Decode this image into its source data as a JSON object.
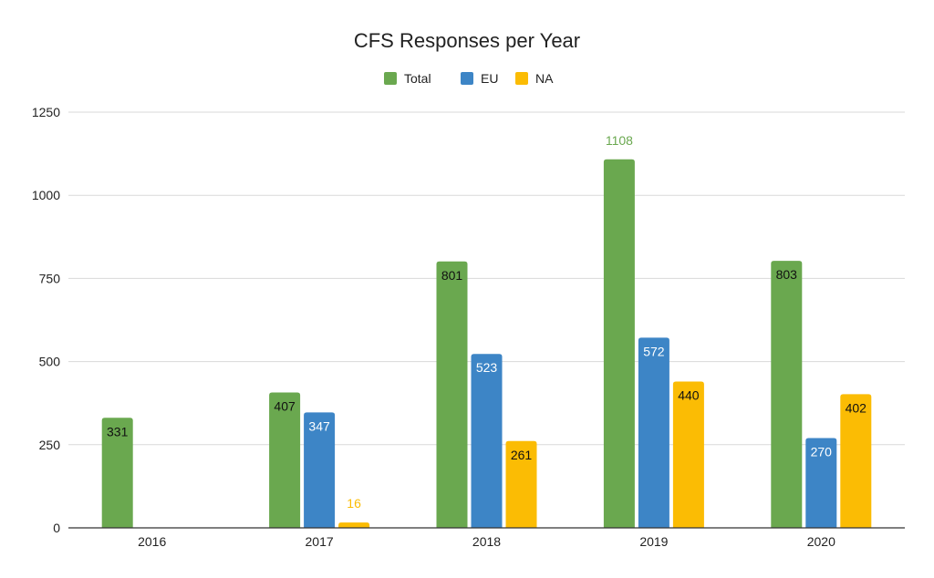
{
  "chart_data": {
    "type": "bar",
    "title": "CFS Responses per Year",
    "xlabel": "",
    "ylabel": "",
    "categories": [
      "2016",
      "2017",
      "2018",
      "2019",
      "2020"
    ],
    "series": [
      {
        "name": "Total",
        "color": "#6aa84f",
        "values": [
          331,
          407,
          801,
          1108,
          803
        ]
      },
      {
        "name": "EU",
        "color": "#3d85c6",
        "values": [
          null,
          347,
          523,
          572,
          270
        ]
      },
      {
        "name": "NA",
        "color": "#fbbc04",
        "values": [
          null,
          16,
          261,
          440,
          402
        ]
      }
    ],
    "ylim": [
      0,
      1250
    ],
    "yticks": [
      0,
      250,
      500,
      750,
      1000,
      1250
    ],
    "grid": true,
    "legend_position": "top-center",
    "data_labels": true
  }
}
